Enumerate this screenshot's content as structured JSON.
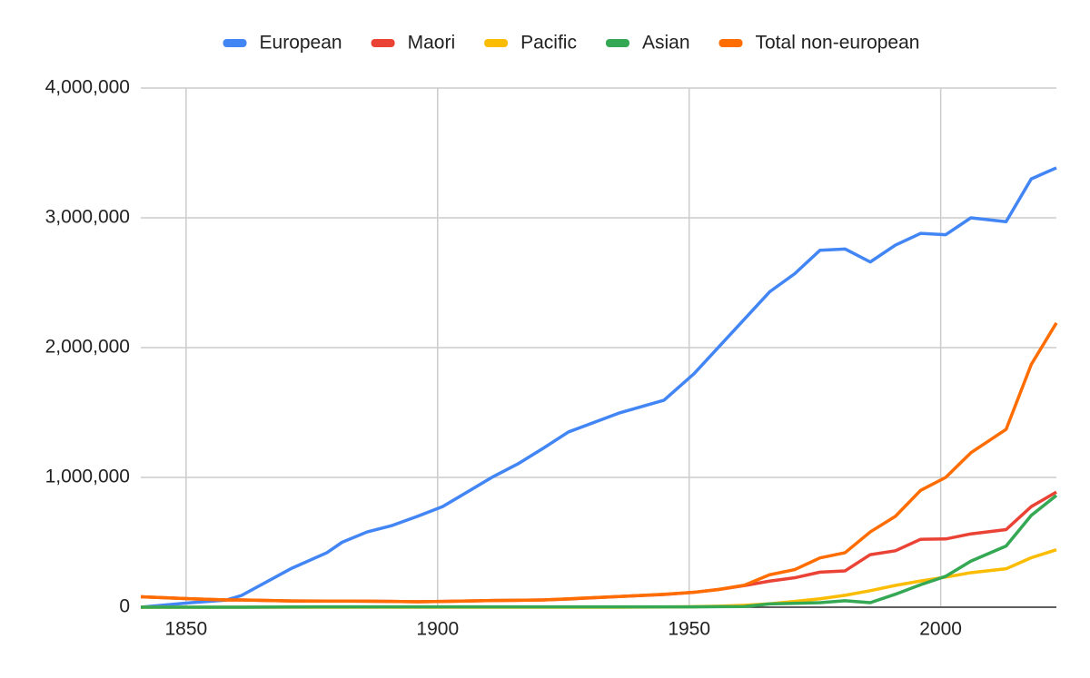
{
  "chart_data": {
    "type": "line",
    "x": [
      1841,
      1851,
      1858,
      1861,
      1871,
      1878,
      1881,
      1886,
      1891,
      1896,
      1901,
      1906,
      1911,
      1916,
      1921,
      1926,
      1936,
      1945,
      1951,
      1956,
      1961,
      1966,
      1971,
      1976,
      1981,
      1986,
      1991,
      1996,
      2001,
      2006,
      2013,
      2018,
      2023
    ],
    "series": [
      {
        "name": "European",
        "color": "#4285f4",
        "values": [
          0,
          35000,
          55000,
          90000,
          300000,
          420000,
          500000,
          580000,
          630000,
          700000,
          775000,
          890000,
          1005000,
          1105000,
          1225000,
          1350000,
          1495000,
          1595000,
          1800000,
          2010000,
          2220000,
          2430000,
          2570000,
          2750000,
          2760000,
          2660000,
          2790000,
          2880000,
          2870000,
          3000000,
          2970000,
          3300000,
          3385000
        ]
      },
      {
        "name": "Maori",
        "color": "#ea4335",
        "values": [
          80000,
          65000,
          56000,
          56000,
          48000,
          47000,
          47000,
          46000,
          45000,
          42000,
          45000,
          48000,
          52000,
          53000,
          56000,
          63000,
          82000,
          98000,
          115000,
          137000,
          167000,
          201000,
          227000,
          270000,
          280000,
          405000,
          435000,
          523000,
          526000,
          565000,
          598000,
          775000,
          887000
        ]
      },
      {
        "name": "Pacific",
        "color": "#fbbc04",
        "values": [
          0,
          0,
          0,
          0,
          0,
          0,
          0,
          0,
          0,
          0,
          0,
          0,
          0,
          0,
          0,
          0,
          0,
          2000,
          4000,
          8000,
          15000,
          26000,
          45000,
          65000,
          92000,
          127000,
          168000,
          202000,
          232000,
          266000,
          296000,
          381000,
          443000
        ]
      },
      {
        "name": "Asian",
        "color": "#34a853",
        "values": [
          0,
          0,
          0,
          0,
          2000,
          3000,
          3000,
          3000,
          3000,
          3000,
          3000,
          3000,
          3000,
          3000,
          3000,
          3000,
          3000,
          3000,
          3000,
          4000,
          5000,
          25000,
          30000,
          35000,
          50000,
          35000,
          100000,
          173000,
          238000,
          355000,
          471000,
          707000,
          861000
        ]
      },
      {
        "name": "Total non-european",
        "color": "#ff6d01",
        "values": [
          80000,
          65000,
          56000,
          56000,
          48000,
          47000,
          47000,
          46000,
          45000,
          42000,
          45000,
          48000,
          52000,
          53000,
          56000,
          65000,
          82000,
          100000,
          115000,
          137000,
          170000,
          250000,
          290000,
          380000,
          420000,
          580000,
          700000,
          900000,
          1000000,
          1190000,
          1370000,
          1870000,
          2190000
        ]
      }
    ],
    "xlim": [
      1841,
      2023
    ],
    "xticks": [
      1850,
      1900,
      1950,
      2000
    ],
    "ylim": [
      0,
      4000000
    ],
    "yticks": [
      0,
      {
        "value": 1000000,
        "label": "1,000,000"
      },
      {
        "value": 2000000,
        "label": "2,000,000"
      },
      {
        "value": 3000000,
        "label": "3,000,000"
      },
      {
        "value": 4000000,
        "label": "4,000,000"
      }
    ],
    "grid": true,
    "legend": "top"
  }
}
